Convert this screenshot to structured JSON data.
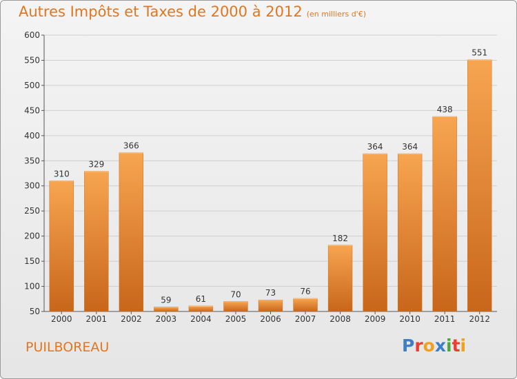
{
  "title": "Autres Impôts et Taxes de 2000 à 2012",
  "title_unit": "(en milliers d'€)",
  "commune": "PUILBOREAU",
  "logo": {
    "letters": [
      {
        "ch": "P",
        "color": "#3d7fc4"
      },
      {
        "ch": "r",
        "color": "#e83f2f"
      },
      {
        "ch": "o",
        "color": "#f0a020"
      },
      {
        "ch": "x",
        "color": "#3d7fc4"
      },
      {
        "ch": "i",
        "color": "#49a83c"
      },
      {
        "ch": "t",
        "color": "#e83f2f"
      },
      {
        "ch": "i",
        "color": "#f0a020"
      }
    ]
  },
  "colors": {
    "title": "#e2761e",
    "bar_top": "#f7a551",
    "bar_bottom": "#c8661a",
    "grid": "#cfcfcf"
  },
  "chart_data": {
    "type": "bar",
    "categories": [
      "2000",
      "2001",
      "2002",
      "2003",
      "2004",
      "2005",
      "2006",
      "2007",
      "2008",
      "2009",
      "2010",
      "2011",
      "2012"
    ],
    "values": [
      310,
      329,
      366,
      59,
      61,
      70,
      73,
      76,
      182,
      364,
      364,
      438,
      551
    ],
    "ylim": [
      50,
      600
    ],
    "yticks": [
      50,
      100,
      150,
      200,
      250,
      300,
      350,
      400,
      450,
      500,
      550,
      600
    ],
    "grid": true
  }
}
